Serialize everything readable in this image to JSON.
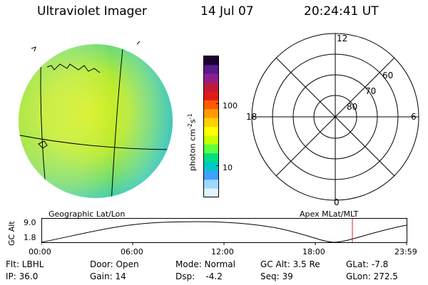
{
  "header": {
    "title": "Ultraviolet Imager",
    "date": "14 Jul 07",
    "time": "20:24:41 UT"
  },
  "colorbar": {
    "ticks": [
      "100",
      "10"
    ],
    "unit_label": "photon cm",
    "unit_exp1": "-2",
    "unit_mid": "s",
    "unit_exp2": "-1",
    "colors": [
      "#1a0033",
      "#5a1a8a",
      "#8c1f8c",
      "#c01a3a",
      "#e01a1a",
      "#ff5a00",
      "#ff9a00",
      "#ffd000",
      "#ffff00",
      "#c8ff00",
      "#60ff40",
      "#00e080",
      "#00c8c8",
      "#40a0ff",
      "#9fd8ff",
      "#dff4ff"
    ]
  },
  "polar": {
    "labels": {
      "top": "12",
      "bottom": "0",
      "left": "18",
      "right": "6"
    },
    "ring_labels": [
      "60",
      "70",
      "80"
    ]
  },
  "plot": {
    "left_label": "Geographic Lat/Lon",
    "right_label": "Apex MLat/MLT",
    "ylabel": "GC Alt",
    "y_ticks": [
      "9.0",
      "1.8"
    ],
    "x_ticks": [
      "00:00",
      "06:00",
      "12:00",
      "18:00",
      "23:59"
    ],
    "marker_color": "#e02020"
  },
  "info": {
    "row1": {
      "flt": "Flt: LBHL",
      "door": "Door: Open",
      "mode": "Mode: Normal",
      "gcalt": "GC Alt: 3.5 Re",
      "glat": "GLat:  -7.8"
    },
    "row2": {
      "ip": "IP: 36.0",
      "gain": "Gain: 14",
      "dsp": "Dsp:    -4.2",
      "seq": "Seq: 39",
      "glon": "GLon: 272.5"
    }
  }
}
